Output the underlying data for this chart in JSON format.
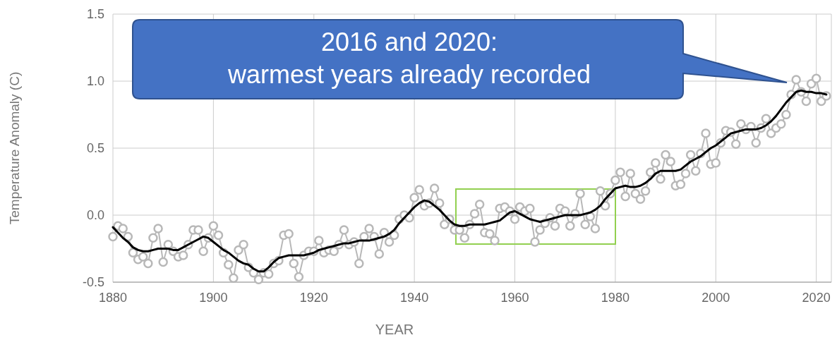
{
  "chart_data": {
    "type": "line",
    "xlabel": "YEAR",
    "ylabel": "Temperature Anomaly (C)",
    "x": [
      1880,
      1881,
      1882,
      1883,
      1884,
      1885,
      1886,
      1887,
      1888,
      1889,
      1890,
      1891,
      1892,
      1893,
      1894,
      1895,
      1896,
      1897,
      1898,
      1899,
      1900,
      1901,
      1902,
      1903,
      1904,
      1905,
      1906,
      1907,
      1908,
      1909,
      1910,
      1911,
      1912,
      1913,
      1914,
      1915,
      1916,
      1917,
      1918,
      1919,
      1920,
      1921,
      1922,
      1923,
      1924,
      1925,
      1926,
      1927,
      1928,
      1929,
      1930,
      1931,
      1932,
      1933,
      1934,
      1935,
      1936,
      1937,
      1938,
      1939,
      1940,
      1941,
      1942,
      1943,
      1944,
      1945,
      1946,
      1947,
      1948,
      1949,
      1950,
      1951,
      1952,
      1953,
      1954,
      1955,
      1956,
      1957,
      1958,
      1959,
      1960,
      1961,
      1962,
      1963,
      1964,
      1965,
      1966,
      1967,
      1968,
      1969,
      1970,
      1971,
      1972,
      1973,
      1974,
      1975,
      1976,
      1977,
      1978,
      1979,
      1980,
      1981,
      1982,
      1983,
      1984,
      1985,
      1986,
      1987,
      1988,
      1989,
      1990,
      1991,
      1992,
      1993,
      1994,
      1995,
      1996,
      1997,
      1998,
      1999,
      2000,
      2001,
      2002,
      2003,
      2004,
      2005,
      2006,
      2007,
      2008,
      2009,
      2010,
      2011,
      2012,
      2013,
      2014,
      2015,
      2016,
      2017,
      2018,
      2019,
      2020,
      2021,
      2022
    ],
    "series": [
      {
        "color": "#b8b8b8",
        "marker": "circle",
        "values": [
          -0.16,
          -0.08,
          -0.1,
          -0.16,
          -0.28,
          -0.33,
          -0.31,
          -0.36,
          -0.17,
          -0.1,
          -0.35,
          -0.22,
          -0.27,
          -0.31,
          -0.3,
          -0.22,
          -0.11,
          -0.11,
          -0.27,
          -0.17,
          -0.08,
          -0.15,
          -0.28,
          -0.37,
          -0.47,
          -0.26,
          -0.22,
          -0.39,
          -0.43,
          -0.48,
          -0.43,
          -0.44,
          -0.36,
          -0.34,
          -0.15,
          -0.14,
          -0.36,
          -0.46,
          -0.3,
          -0.27,
          -0.27,
          -0.19,
          -0.28,
          -0.26,
          -0.27,
          -0.22,
          -0.11,
          -0.22,
          -0.2,
          -0.36,
          -0.16,
          -0.1,
          -0.16,
          -0.29,
          -0.13,
          -0.2,
          -0.15,
          -0.03,
          0.0,
          -0.02,
          0.13,
          0.19,
          0.07,
          0.09,
          0.2,
          0.09,
          -0.07,
          -0.03,
          -0.11,
          -0.11,
          -0.17,
          -0.07,
          0.01,
          0.08,
          -0.13,
          -0.14,
          -0.19,
          0.05,
          0.06,
          0.03,
          -0.03,
          0.06,
          0.03,
          0.05,
          -0.2,
          -0.11,
          -0.06,
          -0.02,
          -0.08,
          0.05,
          0.03,
          -0.08,
          0.01,
          0.16,
          -0.07,
          -0.01,
          -0.1,
          0.18,
          0.07,
          0.16,
          0.26,
          0.32,
          0.14,
          0.31,
          0.16,
          0.12,
          0.18,
          0.32,
          0.39,
          0.27,
          0.45,
          0.4,
          0.22,
          0.23,
          0.31,
          0.45,
          0.33,
          0.46,
          0.61,
          0.38,
          0.39,
          0.54,
          0.63,
          0.62,
          0.53,
          0.68,
          0.64,
          0.66,
          0.54,
          0.65,
          0.72,
          0.61,
          0.65,
          0.68,
          0.75,
          0.9,
          1.01,
          0.92,
          0.85,
          0.98,
          1.02,
          0.85,
          0.89
        ]
      },
      {
        "color": "#000000",
        "marker": "none",
        "values": [
          -0.09,
          -0.13,
          -0.17,
          -0.2,
          -0.24,
          -0.26,
          -0.27,
          -0.27,
          -0.26,
          -0.25,
          -0.25,
          -0.25,
          -0.26,
          -0.26,
          -0.24,
          -0.22,
          -0.2,
          -0.18,
          -0.16,
          -0.17,
          -0.2,
          -0.23,
          -0.26,
          -0.28,
          -0.31,
          -0.34,
          -0.36,
          -0.37,
          -0.4,
          -0.42,
          -0.42,
          -0.39,
          -0.35,
          -0.32,
          -0.31,
          -0.3,
          -0.3,
          -0.3,
          -0.3,
          -0.29,
          -0.28,
          -0.26,
          -0.25,
          -0.24,
          -0.23,
          -0.22,
          -0.21,
          -0.21,
          -0.2,
          -0.19,
          -0.19,
          -0.19,
          -0.18,
          -0.17,
          -0.16,
          -0.14,
          -0.11,
          -0.06,
          -0.02,
          0.02,
          0.06,
          0.09,
          0.11,
          0.1,
          0.07,
          0.04,
          0.0,
          -0.04,
          -0.07,
          -0.08,
          -0.08,
          -0.07,
          -0.07,
          -0.07,
          -0.07,
          -0.06,
          -0.05,
          -0.04,
          -0.01,
          0.02,
          0.03,
          0.01,
          -0.01,
          -0.03,
          -0.04,
          -0.05,
          -0.04,
          -0.03,
          -0.02,
          -0.01,
          0.0,
          0.0,
          0.0,
          0.0,
          0.01,
          0.02,
          0.04,
          0.07,
          0.12,
          0.16,
          0.2,
          0.21,
          0.22,
          0.21,
          0.21,
          0.22,
          0.24,
          0.27,
          0.31,
          0.33,
          0.33,
          0.33,
          0.33,
          0.34,
          0.37,
          0.4,
          0.42,
          0.44,
          0.47,
          0.5,
          0.52,
          0.55,
          0.58,
          0.61,
          0.62,
          0.63,
          0.64,
          0.64,
          0.64,
          0.65,
          0.67,
          0.7,
          0.74,
          0.79,
          0.84,
          0.88,
          0.92,
          0.93,
          0.92,
          0.92,
          0.91,
          0.91,
          0.9
        ]
      }
    ],
    "xlim": [
      1880,
      2023
    ],
    "xticks": [
      1880,
      1900,
      1920,
      1940,
      1960,
      1980,
      2000,
      2020
    ],
    "ylim": [
      -0.5,
      1.5
    ],
    "yticks": [
      {
        "value": -0.5,
        "label": "-0.5"
      },
      {
        "value": 0,
        "label": "0.0"
      },
      {
        "value": 0.5,
        "label": "0.5"
      },
      {
        "value": 1,
        "label": "1.0"
      },
      {
        "value": 1.5,
        "label": "1.5"
      }
    ],
    "grid": true,
    "annotations": [
      "2016 and 2020:\nwarmest years already recorded"
    ]
  }
}
